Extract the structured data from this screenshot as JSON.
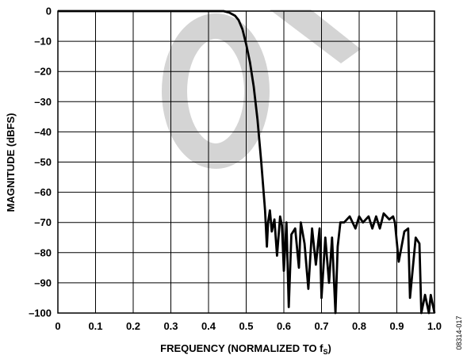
{
  "chart_data": {
    "type": "line",
    "xlabel": "FREQUENCY (NORMALIZED TO f",
    "xlabel_sub": "S",
    "xlabel_close": ")",
    "ylabel": "MAGNITUDE (dBFS)",
    "xlim": [
      0,
      1.0
    ],
    "ylim": [
      -100,
      0
    ],
    "grid": true,
    "legend": "none",
    "x_ticks": [
      {
        "value": 0,
        "label": "0"
      },
      {
        "value": 0.1,
        "label": "0.1"
      },
      {
        "value": 0.2,
        "label": "0.2"
      },
      {
        "value": 0.3,
        "label": "0.3"
      },
      {
        "value": 0.4,
        "label": "0.4"
      },
      {
        "value": 0.5,
        "label": "0.5"
      },
      {
        "value": 0.6,
        "label": "0.6"
      },
      {
        "value": 0.7,
        "label": "0.7"
      },
      {
        "value": 0.8,
        "label": "0.8"
      },
      {
        "value": 0.9,
        "label": "0.9"
      },
      {
        "value": 1.0,
        "label": "1.0"
      }
    ],
    "y_ticks": [
      {
        "value": 0,
        "label": "0"
      },
      {
        "value": -10,
        "label": "–10"
      },
      {
        "value": -20,
        "label": "–20"
      },
      {
        "value": -30,
        "label": "–30"
      },
      {
        "value": -40,
        "label": "–40"
      },
      {
        "value": -50,
        "label": "–50"
      },
      {
        "value": -60,
        "label": "–60"
      },
      {
        "value": -70,
        "label": "–70"
      },
      {
        "value": -80,
        "label": "–80"
      },
      {
        "value": -90,
        "label": "–90"
      },
      {
        "value": -100,
        "label": "–100"
      }
    ],
    "series": [
      {
        "color": "#000000",
        "x": [
          0,
          0.44,
          0.455,
          0.47,
          0.48,
          0.49,
          0.5,
          0.51,
          0.52,
          0.53,
          0.54,
          0.55,
          0.555,
          0.558,
          0.563,
          0.568,
          0.575,
          0.582,
          0.59,
          0.595,
          0.6,
          0.607,
          0.613,
          0.62,
          0.63,
          0.64,
          0.645,
          0.655,
          0.665,
          0.675,
          0.685,
          0.695,
          0.7,
          0.71,
          0.72,
          0.728,
          0.737,
          0.743,
          0.75,
          0.76,
          0.775,
          0.79,
          0.8,
          0.81,
          0.825,
          0.835,
          0.845,
          0.855,
          0.865,
          0.88,
          0.89,
          0.895,
          0.905,
          0.92,
          0.93,
          0.935,
          0.95,
          0.96,
          0.965,
          0.975,
          0.985,
          0.99,
          1.0
        ],
        "y": [
          0,
          0,
          -0.5,
          -1.5,
          -3,
          -6,
          -11,
          -17,
          -25,
          -36,
          -50,
          -66,
          -78,
          -70,
          -66,
          -73,
          -69,
          -81,
          -68,
          -71,
          -86,
          -70,
          -98,
          -74,
          -72,
          -85,
          -70,
          -77,
          -92,
          -72,
          -84,
          -72,
          -95,
          -75,
          -90,
          -75,
          -100,
          -78,
          -70,
          -70,
          -68,
          -72,
          -68,
          -70,
          -68,
          -72,
          -68,
          -72,
          -67,
          -69,
          -68,
          -70,
          -83,
          -73,
          -72,
          -95,
          -75,
          -77,
          -100,
          -94,
          -100,
          -94,
          -100
        ]
      }
    ]
  },
  "watermark": "OBSOLETE",
  "figure_id": "08314-017"
}
